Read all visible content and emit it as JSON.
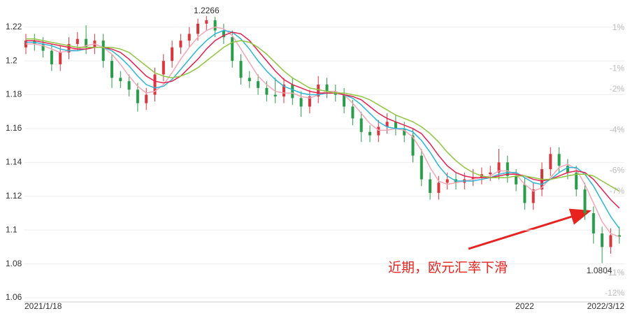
{
  "chart_data": {
    "type": "candlestick",
    "categories": [
      "2021/1/18",
      null,
      null,
      null,
      null,
      null,
      null,
      null,
      null,
      null,
      null,
      null,
      null,
      null,
      null,
      null,
      null,
      null,
      null,
      null,
      null,
      null,
      null,
      null,
      null,
      null,
      null,
      null,
      null,
      null,
      null,
      null,
      null,
      null,
      null,
      null,
      null,
      null,
      null,
      null,
      null,
      null,
      null,
      null,
      null,
      null,
      null,
      null,
      null,
      null,
      null,
      null,
      null,
      null,
      null,
      null,
      null,
      null,
      "2022",
      null,
      null,
      null,
      null,
      null,
      null,
      null,
      null,
      null,
      null,
      "2022/3/12"
    ],
    "open": [
      1.208,
      1.212,
      1.21,
      1.206,
      1.198,
      1.205,
      1.21,
      1.213,
      1.208,
      1.212,
      1.2,
      1.19,
      1.188,
      1.183,
      1.175,
      1.18,
      1.192,
      1.2,
      1.208,
      1.212,
      1.216,
      1.222,
      1.224,
      1.218,
      1.214,
      1.2,
      1.19,
      1.188,
      1.184,
      1.18,
      1.179,
      1.186,
      1.178,
      1.173,
      1.179,
      1.186,
      1.182,
      1.18,
      1.173,
      1.166,
      1.158,
      1.156,
      1.161,
      1.164,
      1.16,
      1.156,
      1.144,
      1.13,
      1.122,
      1.128,
      1.13,
      1.128,
      1.13,
      1.131,
      1.133,
      1.134,
      1.14,
      1.132,
      1.127,
      1.116,
      1.124,
      1.136,
      1.145,
      1.138,
      1.134,
      1.124,
      1.11,
      1.098,
      1.09,
      1.097
    ],
    "close": [
      1.212,
      1.21,
      1.206,
      1.198,
      1.205,
      1.21,
      1.213,
      1.208,
      1.212,
      1.2,
      1.19,
      1.188,
      1.183,
      1.175,
      1.18,
      1.192,
      1.2,
      1.208,
      1.212,
      1.216,
      1.222,
      1.224,
      1.218,
      1.214,
      1.2,
      1.19,
      1.188,
      1.184,
      1.18,
      1.179,
      1.186,
      1.178,
      1.173,
      1.179,
      1.186,
      1.182,
      1.18,
      1.173,
      1.166,
      1.158,
      1.156,
      1.161,
      1.164,
      1.16,
      1.156,
      1.144,
      1.13,
      1.122,
      1.128,
      1.13,
      1.128,
      1.13,
      1.131,
      1.133,
      1.134,
      1.14,
      1.132,
      1.127,
      1.116,
      1.124,
      1.136,
      1.145,
      1.138,
      1.134,
      1.124,
      1.11,
      1.098,
      1.09,
      1.097,
      1.096
    ],
    "high": [
      1.216,
      1.216,
      1.214,
      1.21,
      1.209,
      1.214,
      1.217,
      1.221,
      1.216,
      1.216,
      1.204,
      1.194,
      1.192,
      1.187,
      1.184,
      1.196,
      1.204,
      1.212,
      1.216,
      1.22,
      1.225,
      1.2266,
      1.226,
      1.222,
      1.218,
      1.204,
      1.194,
      1.192,
      1.188,
      1.19,
      1.19,
      1.19,
      1.182,
      1.183,
      1.191,
      1.19,
      1.186,
      1.184,
      1.177,
      1.17,
      1.162,
      1.165,
      1.169,
      1.168,
      1.164,
      1.16,
      1.148,
      1.134,
      1.132,
      1.134,
      1.134,
      1.134,
      1.136,
      1.137,
      1.138,
      1.148,
      1.144,
      1.136,
      1.131,
      1.128,
      1.14,
      1.149,
      1.149,
      1.142,
      1.138,
      1.128,
      1.114,
      1.102,
      1.101,
      1.102
    ],
    "low": [
      1.204,
      1.206,
      1.202,
      1.194,
      1.194,
      1.201,
      1.206,
      1.204,
      1.204,
      1.196,
      1.184,
      1.184,
      1.179,
      1.17,
      1.171,
      1.176,
      1.188,
      1.196,
      1.204,
      1.208,
      1.212,
      1.218,
      1.214,
      1.21,
      1.196,
      1.186,
      1.184,
      1.18,
      1.176,
      1.175,
      1.175,
      1.174,
      1.167,
      1.169,
      1.175,
      1.178,
      1.176,
      1.169,
      1.162,
      1.152,
      1.152,
      1.152,
      1.157,
      1.156,
      1.152,
      1.14,
      1.126,
      1.118,
      1.118,
      1.124,
      1.124,
      1.124,
      1.126,
      1.127,
      1.129,
      1.13,
      1.128,
      1.123,
      1.112,
      1.112,
      1.12,
      1.132,
      1.134,
      1.13,
      1.12,
      1.106,
      1.092,
      1.0804,
      1.086,
      1.092
    ],
    "up_color": "#d9363e",
    "down_color": "#2a9d4a",
    "series": [
      {
        "color": "#f4a6b7",
        "values": [
          1.21,
          1.21,
          1.209,
          1.207,
          1.205,
          1.206,
          1.207,
          1.209,
          1.21,
          1.208,
          1.204,
          1.198,
          1.191,
          1.185,
          1.181,
          1.182,
          1.186,
          1.193,
          1.201,
          1.208,
          1.214,
          1.218,
          1.22,
          1.219,
          1.215,
          1.207,
          1.199,
          1.191,
          1.186,
          1.182,
          1.181,
          1.181,
          1.179,
          1.178,
          1.18,
          1.182,
          1.182,
          1.18,
          1.175,
          1.169,
          1.163,
          1.159,
          1.159,
          1.16,
          1.159,
          1.155,
          1.147,
          1.137,
          1.129,
          1.127,
          1.128,
          1.129,
          1.13,
          1.131,
          1.132,
          1.135,
          1.135,
          1.133,
          1.127,
          1.123,
          1.125,
          1.131,
          1.137,
          1.139,
          1.136,
          1.127,
          1.116,
          1.105,
          1.098,
          1.096
        ]
      },
      {
        "color": "#2bb5d8",
        "values": [
          1.211,
          1.211,
          1.21,
          1.209,
          1.207,
          1.206,
          1.206,
          1.207,
          1.208,
          1.208,
          1.206,
          1.202,
          1.197,
          1.191,
          1.186,
          1.184,
          1.185,
          1.189,
          1.195,
          1.201,
          1.207,
          1.212,
          1.216,
          1.218,
          1.217,
          1.213,
          1.207,
          1.2,
          1.194,
          1.189,
          1.185,
          1.183,
          1.181,
          1.18,
          1.18,
          1.181,
          1.181,
          1.18,
          1.178,
          1.174,
          1.169,
          1.164,
          1.161,
          1.16,
          1.16,
          1.158,
          1.153,
          1.146,
          1.138,
          1.132,
          1.129,
          1.129,
          1.129,
          1.13,
          1.131,
          1.133,
          1.134,
          1.134,
          1.131,
          1.128,
          1.127,
          1.13,
          1.134,
          1.137,
          1.137,
          1.133,
          1.126,
          1.117,
          1.108,
          1.101
        ]
      },
      {
        "color": "#e8204e",
        "values": [
          1.212,
          1.212,
          1.211,
          1.21,
          1.209,
          1.208,
          1.207,
          1.207,
          1.208,
          1.208,
          1.207,
          1.205,
          1.201,
          1.196,
          1.191,
          1.188,
          1.187,
          1.188,
          1.191,
          1.196,
          1.201,
          1.207,
          1.212,
          1.215,
          1.217,
          1.216,
          1.212,
          1.206,
          1.2,
          1.194,
          1.189,
          1.186,
          1.184,
          1.182,
          1.181,
          1.181,
          1.181,
          1.18,
          1.179,
          1.177,
          1.173,
          1.169,
          1.166,
          1.164,
          1.162,
          1.16,
          1.157,
          1.151,
          1.144,
          1.138,
          1.134,
          1.132,
          1.131,
          1.131,
          1.131,
          1.132,
          1.133,
          1.133,
          1.132,
          1.13,
          1.129,
          1.13,
          1.132,
          1.134,
          1.135,
          1.134,
          1.13,
          1.124,
          1.118,
          1.113
        ]
      },
      {
        "color": "#8ec63f",
        "values": [
          1.213,
          1.213,
          1.212,
          1.211,
          1.21,
          1.209,
          1.208,
          1.208,
          1.208,
          1.208,
          1.208,
          1.207,
          1.205,
          1.201,
          1.197,
          1.193,
          1.191,
          1.19,
          1.191,
          1.193,
          1.196,
          1.2,
          1.204,
          1.208,
          1.211,
          1.212,
          1.211,
          1.208,
          1.204,
          1.199,
          1.194,
          1.19,
          1.187,
          1.184,
          1.183,
          1.182,
          1.181,
          1.181,
          1.18,
          1.179,
          1.177,
          1.174,
          1.171,
          1.168,
          1.166,
          1.164,
          1.161,
          1.157,
          1.152,
          1.146,
          1.141,
          1.137,
          1.134,
          1.132,
          1.131,
          1.131,
          1.131,
          1.132,
          1.132,
          1.131,
          1.13,
          1.13,
          1.131,
          1.132,
          1.133,
          1.133,
          1.132,
          1.129,
          1.126,
          1.123
        ]
      }
    ],
    "ylim": [
      1.06,
      1.236
    ],
    "yticks": [
      1.06,
      1.08,
      1.1,
      1.12,
      1.14,
      1.16,
      1.18,
      1.2,
      1.22
    ],
    "y2lim": [
      -12.21,
      2.37
    ],
    "y2ticks": [
      {
        "value": 1,
        "label": "1%"
      },
      {
        "value": -1,
        "label": "-1%"
      },
      {
        "value": -2,
        "label": "-2%"
      },
      {
        "value": -4,
        "label": "-4%"
      },
      {
        "value": -6,
        "label": "-6%"
      },
      {
        "value": -7,
        "label": "-7%"
      },
      {
        "value": -11,
        "label": "-11%"
      },
      {
        "value": -12,
        "label": "-12%"
      }
    ],
    "grid": true,
    "high_label": "1.2266",
    "low_label": "1.0804",
    "annotation": "近期，欧元汇率下滑",
    "annotation_color": "#e8231f"
  }
}
